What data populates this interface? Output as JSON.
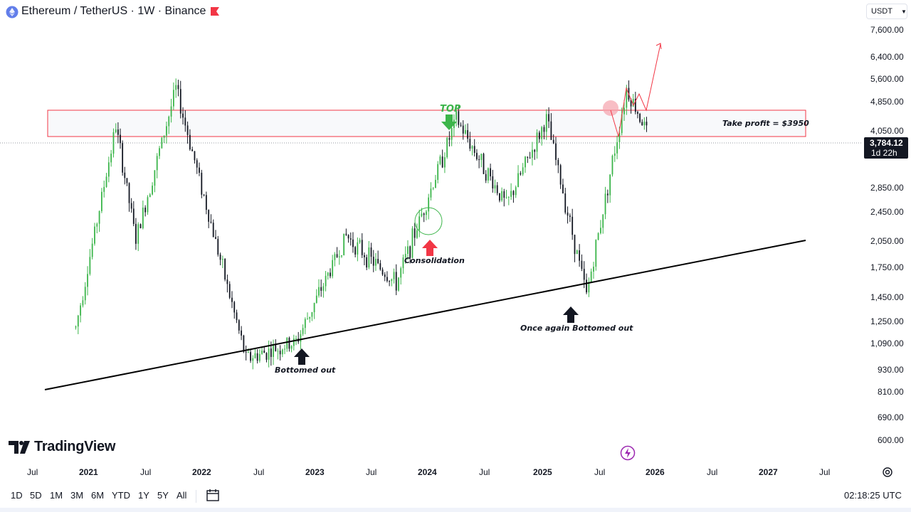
{
  "header": {
    "symbol_title": "Ethereum / TetherUS · 1W · Binance",
    "currency": "USDT"
  },
  "price_axis": {
    "ticks": [
      "7,600.00",
      "6,400.00",
      "5,600.00",
      "4,850.00",
      "4,050.00",
      "2,850.00",
      "2,450.00",
      "2,050.00",
      "1,750.00",
      "1,450.00",
      "1,250.00",
      "1,090.00",
      "930.00",
      "810.00",
      "690.00",
      "600.00"
    ],
    "current_price": "3,784.12",
    "countdown": "1d 22h"
  },
  "time_axis": {
    "ticks": [
      "Jul",
      "2021",
      "Jul",
      "2022",
      "Jul",
      "2023",
      "Jul",
      "2024",
      "Jul",
      "2025",
      "Jul",
      "2026",
      "Jul",
      "2027",
      "Jul"
    ]
  },
  "annotations": {
    "take_profit": "Take profit = $3950",
    "top": "TOP",
    "consolidation": "Consolidation",
    "bottomed_out": "Bottomed out",
    "once_again": "Once again Bottomed out"
  },
  "branding": {
    "wordmark": "TradingView"
  },
  "bottom_bar": {
    "timeframes": [
      "1D",
      "5D",
      "1M",
      "3M",
      "6M",
      "YTD",
      "1Y",
      "5Y",
      "All"
    ],
    "clock": "02:18:25 UTC"
  },
  "colors": {
    "up": "#26a69a",
    "candle_up": "#3bb54a",
    "candle_down": "#131722",
    "zone_border": "#f23645",
    "top_arrow": "#3cb54a",
    "consolidation_arrow": "#f23645",
    "projection": "#f23645"
  },
  "chart_data": {
    "type": "candlestick",
    "series": [
      {
        "values": [
          {
            "x": "2021-01",
            "close": 1200
          },
          {
            "x": "2021-05",
            "close": 3900
          },
          {
            "x": "2021-07",
            "close": 2000
          },
          {
            "x": "2021-11",
            "close": 4850
          },
          {
            "x": "2022-06",
            "close": 1000
          },
          {
            "x": "2022-11",
            "close": 1100
          },
          {
            "x": "2023-04",
            "close": 2050
          },
          {
            "x": "2023-09",
            "close": 1550
          },
          {
            "x": "2024-03",
            "close": 4050
          },
          {
            "x": "2024-08",
            "close": 2450
          },
          {
            "x": "2024-12",
            "close": 4050
          },
          {
            "x": "2025-04",
            "close": 1450
          },
          {
            "x": "2025-08",
            "close": 4850
          },
          {
            "x": "2025-10",
            "close": 3784.12
          }
        ]
      }
    ],
    "ylim": [
      560,
      8000
    ],
    "yscale": "log",
    "x_range": [
      "2020-06",
      "2027-08"
    ],
    "take_profit_zone": [
      3950,
      4850
    ]
  }
}
